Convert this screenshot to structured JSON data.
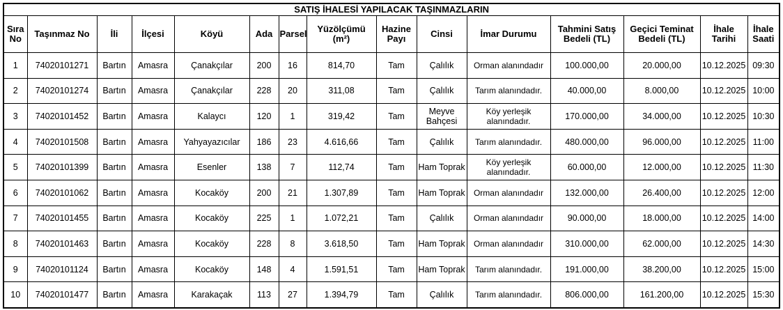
{
  "title": "SATIŞ İHALESİ YAPILACAK TAŞINMAZLARIN",
  "headers": [
    "Sıra No",
    "Taşınmaz No",
    "İli",
    "İlçesi",
    "Köyü",
    "Ada",
    "Parsel",
    "Yüzölçümü (m²)",
    "Hazine Payı",
    "Cinsi",
    "İmar Durumu",
    "Tahmini Satış Bedeli (TL)",
    "Geçici Teminat Bedeli (TL)",
    "İhale Tarihi",
    "İhale Saati"
  ],
  "rows": [
    [
      "1",
      "74020101271",
      "Bartın",
      "Amasra",
      "Çanakçılar",
      "200",
      "16",
      "814,70",
      "Tam",
      "Çalılık",
      "Orman alanındadır",
      "100.000,00",
      "20.000,00",
      "10.12.2025",
      "09:30"
    ],
    [
      "2",
      "74020101274",
      "Bartın",
      "Amasra",
      "Çanakçılar",
      "228",
      "20",
      "311,08",
      "Tam",
      "Çalılık",
      "Tarım alanındadır.",
      "40.000,00",
      "8.000,00",
      "10.12.2025",
      "10:00"
    ],
    [
      "3",
      "74020101452",
      "Bartın",
      "Amasra",
      "Kalaycı",
      "120",
      "1",
      "319,42",
      "Tam",
      "Meyve Bahçesi",
      "Köy yerleşik alanındadır.",
      "170.000,00",
      "34.000,00",
      "10.12.2025",
      "10:30"
    ],
    [
      "4",
      "74020101508",
      "Bartın",
      "Amasra",
      "Yahyayazıcılar",
      "186",
      "23",
      "4.616,66",
      "Tam",
      "Çalılık",
      "Tarım alanındadır.",
      "480.000,00",
      "96.000,00",
      "10.12.2025",
      "11:00"
    ],
    [
      "5",
      "74020101399",
      "Bartın",
      "Amasra",
      "Esenler",
      "138",
      "7",
      "112,74",
      "Tam",
      "Ham Toprak",
      "Köy yerleşik alanındadır.",
      "60.000,00",
      "12.000,00",
      "10.12.2025",
      "11:30"
    ],
    [
      "6",
      "74020101062",
      "Bartın",
      "Amasra",
      "Kocaköy",
      "200",
      "21",
      "1.307,89",
      "Tam",
      "Ham Toprak",
      "Orman alanındadır",
      "132.000,00",
      "26.400,00",
      "10.12.2025",
      "12:00"
    ],
    [
      "7",
      "74020101455",
      "Bartın",
      "Amasra",
      "Kocaköy",
      "225",
      "1",
      "1.072,21",
      "Tam",
      "Çalılık",
      "Orman alanındadır",
      "90.000,00",
      "18.000,00",
      "10.12.2025",
      "14:00"
    ],
    [
      "8",
      "74020101463",
      "Bartın",
      "Amasra",
      "Kocaköy",
      "228",
      "8",
      "3.618,50",
      "Tam",
      "Ham Toprak",
      "Orman alanındadır",
      "310.000,00",
      "62.000,00",
      "10.12.2025",
      "14:30"
    ],
    [
      "9",
      "74020101124",
      "Bartın",
      "Amasra",
      "Kocaköy",
      "148",
      "4",
      "1.591,51",
      "Tam",
      "Ham Toprak",
      "Tarım alanındadır.",
      "191.000,00",
      "38.200,00",
      "10.12.2025",
      "15:00"
    ],
    [
      "10",
      "74020101477",
      "Bartın",
      "Amasra",
      "Karakaçak",
      "113",
      "27",
      "1.394,79",
      "Tam",
      "Çalılık",
      "Tarım alanındadır.",
      "806.000,00",
      "161.200,00",
      "10.12.2025",
      "15:30"
    ]
  ]
}
